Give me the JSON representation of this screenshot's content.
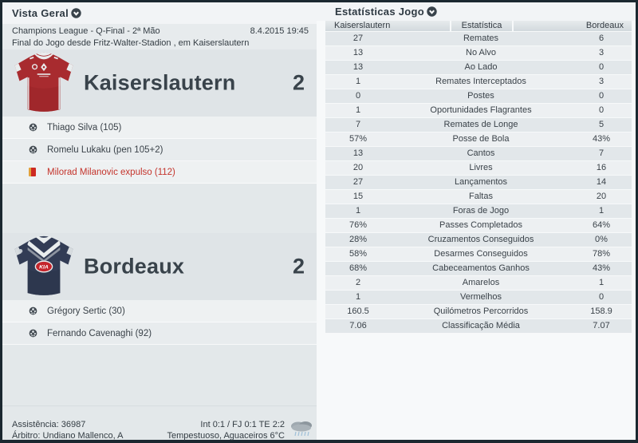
{
  "left_panel": {
    "title": "Vista Geral",
    "competition": "Champions League - Q-Final - 2ª Mão",
    "datetime": "8.4.2015 19:45",
    "status_line": "Final do Jogo desde Fritz-Walter-Stadion , em Kaiserslautern",
    "home": {
      "name": "Kaiserslautern",
      "score": "2",
      "events": [
        {
          "type": "goal",
          "text": "Thiago Silva (105)"
        },
        {
          "type": "goal",
          "text": "Romelu Lukaku (pen 105+2)"
        },
        {
          "type": "red-card",
          "text": "Milorad Milanovic expulso (112)"
        }
      ]
    },
    "away": {
      "name": "Bordeaux",
      "score": "2",
      "events": [
        {
          "type": "goal",
          "text": "Grégory Sertic (30)"
        },
        {
          "type": "goal",
          "text": "Fernando Cavenaghi (92)"
        }
      ]
    },
    "footer": {
      "attendance": "Assistência: 36987",
      "referee": "Árbitro: Undiano Mallenco, A",
      "score_breakdown": "Int 0:1 / FJ 0:1 TE 2:2",
      "weather": "Tempestuoso, Aguaceiros 6°C",
      "weather_icon": "rain-cloud-icon"
    }
  },
  "right_panel": {
    "title": "Estatísticas Jogo",
    "table": {
      "headers": {
        "home": "Kaiserslautern",
        "stat": "Estatística",
        "away": "Bordeaux"
      },
      "rows": [
        {
          "home": "27",
          "stat": "Remates",
          "away": "6"
        },
        {
          "home": "13",
          "stat": "No Alvo",
          "away": "3"
        },
        {
          "home": "13",
          "stat": "Ao Lado",
          "away": "0"
        },
        {
          "home": "1",
          "stat": "Remates Interceptados",
          "away": "3"
        },
        {
          "home": "0",
          "stat": "Postes",
          "away": "0"
        },
        {
          "home": "1",
          "stat": "Oportunidades Flagrantes",
          "away": "0"
        },
        {
          "home": "7",
          "stat": "Remates de Longe",
          "away": "5"
        },
        {
          "home": "57%",
          "stat": "Posse de Bola",
          "away": "43%"
        },
        {
          "home": "13",
          "stat": "Cantos",
          "away": "7"
        },
        {
          "home": "20",
          "stat": "Livres",
          "away": "16"
        },
        {
          "home": "27",
          "stat": "Lançamentos",
          "away": "14"
        },
        {
          "home": "15",
          "stat": "Faltas",
          "away": "20"
        },
        {
          "home": "1",
          "stat": "Foras de Jogo",
          "away": "1"
        },
        {
          "home": "76%",
          "stat": "Passes Completados",
          "away": "64%"
        },
        {
          "home": "28%",
          "stat": "Cruzamentos Conseguidos",
          "away": "0%"
        },
        {
          "home": "58%",
          "stat": "Desarmes Conseguidos",
          "away": "78%"
        },
        {
          "home": "68%",
          "stat": "Cabeceamentos Ganhos",
          "away": "43%"
        },
        {
          "home": "2",
          "stat": "Amarelos",
          "away": "1"
        },
        {
          "home": "1",
          "stat": "Vermelhos",
          "away": "0"
        },
        {
          "home": "160.5",
          "stat": "Quilómetros Percorridos",
          "away": "158.9"
        },
        {
          "home": "7.06",
          "stat": "Classificação Média",
          "away": "7.07"
        }
      ]
    }
  },
  "colors": {
    "home_kit": "#a82b2f",
    "away_kit": "#323c55",
    "red_card_text": "#c4342c",
    "frame": "#1b2830",
    "accent_dark": "#39434b"
  }
}
